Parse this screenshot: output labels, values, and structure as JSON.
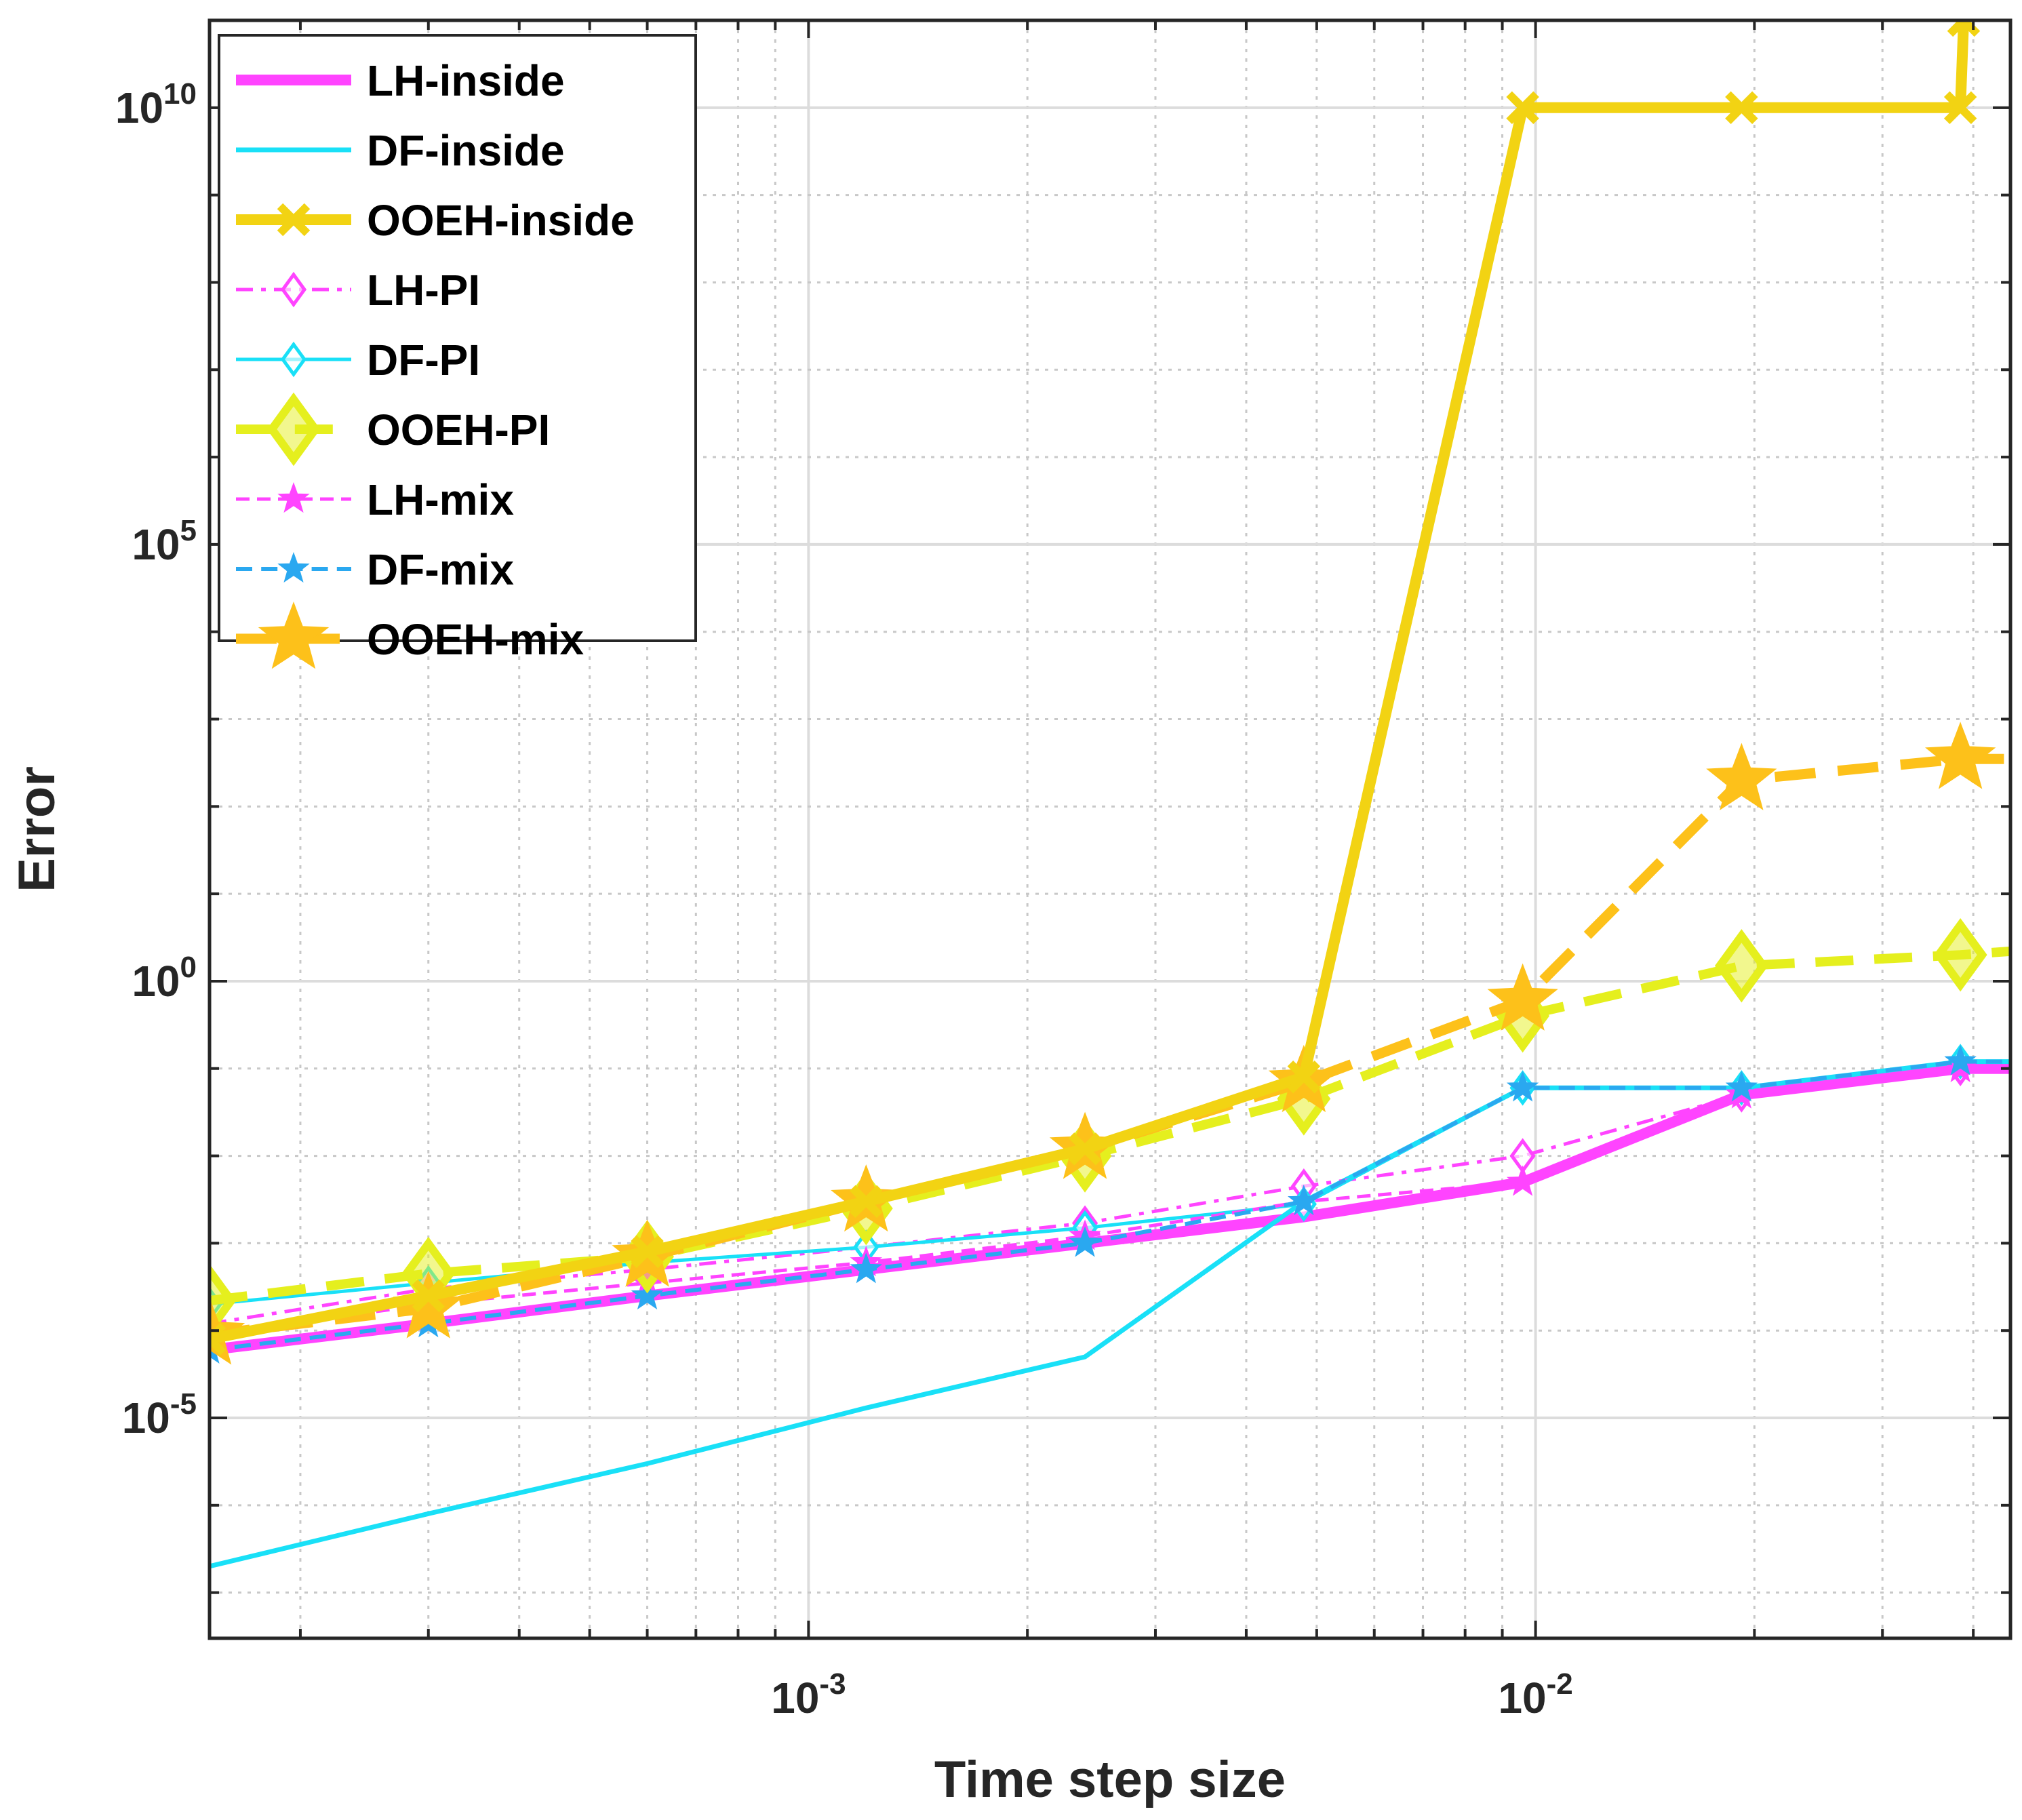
{
  "chart_data": {
    "type": "line",
    "xscale": "log",
    "yscale": "log",
    "xlabel": "Time step size",
    "ylabel": "Error",
    "xlim": [
      0.00015,
      0.045
    ],
    "ylim": [
      3e-08,
      100000000000.0
    ],
    "xticks": [
      {
        "value": 0.001,
        "base": "10",
        "exp": "-3"
      },
      {
        "value": 0.01,
        "base": "10",
        "exp": "-2"
      }
    ],
    "yticks": [
      {
        "value": 1e-05,
        "base": "10",
        "exp": "-5"
      },
      {
        "value": 1,
        "base": "10",
        "exp": "0"
      },
      {
        "value": 100000,
        "base": "10",
        "exp": "5"
      },
      {
        "value": 10000000000,
        "base": "10",
        "exp": "10"
      }
    ],
    "grid": true,
    "legend_position": "top-left",
    "series": [
      {
        "name": "LH-inside",
        "color": "#ff44ff",
        "dash": "solid",
        "width": 16,
        "marker": "none",
        "x": [
          0.00015,
          0.0003,
          0.0006,
          0.0012,
          0.0024,
          0.0048,
          0.0096,
          0.0192,
          0.0384,
          0.045
        ],
        "y": [
          6e-05,
          0.00012,
          0.00025,
          0.0005,
          0.001,
          0.002,
          0.005,
          0.05,
          0.1,
          0.1
        ]
      },
      {
        "name": "DF-inside",
        "color": "#19e0f7",
        "dash": "solid",
        "width": 7,
        "marker": "none",
        "x": [
          0.00015,
          0.0003,
          0.0006,
          0.0012,
          0.0024,
          0.0048,
          0.0096,
          0.0192,
          0.0384,
          0.045
        ],
        "y": [
          2e-07,
          8e-07,
          3e-06,
          1.3e-05,
          5e-05,
          0.003,
          0.06,
          0.06,
          0.12,
          0.12
        ]
      },
      {
        "name": "OOEH-inside",
        "color": "#f2d313",
        "dash": "solid",
        "width": 16,
        "marker": "cross",
        "x": [
          0.00015,
          0.0003,
          0.0006,
          0.0012,
          0.0024,
          0.0048,
          0.0096,
          0.0192,
          0.0384,
          0.0388
        ],
        "y": [
          8e-05,
          0.00025,
          0.0008,
          0.003,
          0.012,
          0.08,
          10000000000,
          10000000000,
          10000000000,
          100000000000
        ]
      },
      {
        "name": "LH-PI",
        "color": "#ff44ff",
        "dash": "dashdot",
        "width": 5,
        "marker": "diamond-open",
        "x": [
          0.00015,
          0.0003,
          0.0006,
          0.0012,
          0.0024,
          0.0048,
          0.0096,
          0.0192,
          0.0384,
          0.045
        ],
        "y": [
          0.00012,
          0.0003,
          0.0005,
          0.0009,
          0.0017,
          0.0045,
          0.01,
          0.05,
          0.1,
          0.1
        ]
      },
      {
        "name": "DF-PI",
        "color": "#19e0f7",
        "dash": "solid",
        "width": 5,
        "marker": "diamond-open",
        "x": [
          0.00015,
          0.0003,
          0.0006,
          0.0012,
          0.0024,
          0.0048,
          0.0096,
          0.0192,
          0.0384,
          0.045
        ],
        "y": [
          0.0002,
          0.00035,
          0.0006,
          0.0009,
          0.0015,
          0.0028,
          0.06,
          0.06,
          0.12,
          0.12
        ]
      },
      {
        "name": "OOEH-PI",
        "color": "#e5ef1e",
        "dash": "dashed",
        "width": 14,
        "marker": "diamond-big",
        "x": [
          0.00015,
          0.0003,
          0.0006,
          0.0012,
          0.0024,
          0.0048,
          0.0096,
          0.0192,
          0.0384,
          0.045
        ],
        "y": [
          0.00022,
          0.00045,
          0.0007,
          0.0025,
          0.01,
          0.045,
          0.4,
          1.5,
          2,
          2.2
        ]
      },
      {
        "name": "LH-mix",
        "color": "#ff44ff",
        "dash": "dashed",
        "width": 5,
        "marker": "star-small",
        "x": [
          0.00015,
          0.0003,
          0.0006,
          0.0012,
          0.0024,
          0.0048,
          0.0096,
          0.0192,
          0.0384,
          0.045
        ],
        "y": [
          9e-05,
          0.0002,
          0.00035,
          0.0006,
          0.0012,
          0.003,
          0.005,
          0.05,
          0.1,
          0.1
        ]
      },
      {
        "name": "DF-mix",
        "color": "#2aa8f0",
        "dash": "dashed",
        "width": 6,
        "marker": "star-small",
        "x": [
          0.00015,
          0.0003,
          0.0006,
          0.0012,
          0.0024,
          0.0048,
          0.0096,
          0.0192,
          0.0384,
          0.045
        ],
        "y": [
          6e-05,
          0.00012,
          0.00025,
          0.0005,
          0.001,
          0.003,
          0.06,
          0.06,
          0.12,
          0.12
        ]
      },
      {
        "name": "OOEH-mix",
        "color": "#fdc11a",
        "dash": "dashed",
        "width": 15,
        "marker": "star-big",
        "x": [
          0.00015,
          0.0003,
          0.0006,
          0.0012,
          0.0024,
          0.0048,
          0.0096,
          0.0192,
          0.0384,
          0.045
        ],
        "y": [
          9e-05,
          0.00018,
          0.0007,
          0.003,
          0.012,
          0.07,
          0.6,
          200,
          350,
          350
        ]
      }
    ]
  }
}
